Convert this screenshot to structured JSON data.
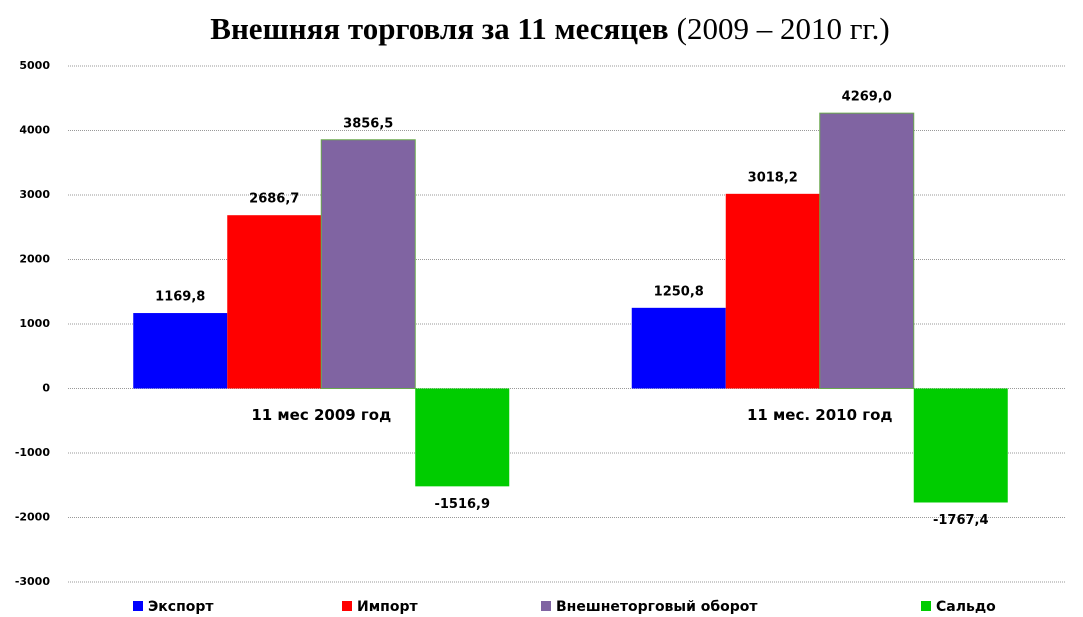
{
  "chart_data": {
    "type": "bar",
    "title": "Внешняя торговля за 11 месяцев",
    "subtitle": "(2009 – 2010 гг.)",
    "categories": [
      "11 мес 2009 год",
      "11 мес. 2010 год"
    ],
    "series": [
      {
        "name": "Экспорт",
        "color": "#0000ff",
        "values": [
          1169.8,
          1250.8
        ],
        "value_labels": [
          "1169,8",
          "1250,8"
        ]
      },
      {
        "name": "Импорт",
        "color": "#ff0000",
        "values": [
          2686.7,
          3018.2
        ],
        "value_labels": [
          "2686,7",
          "3018,2"
        ]
      },
      {
        "name": "Внешнеторговый оборот",
        "color": "#8064a2",
        "values": [
          3856.5,
          4269.0
        ],
        "value_labels": [
          "3856,5",
          "4269,0"
        ]
      },
      {
        "name": "Сальдо",
        "color": "#00cc00",
        "values": [
          -1516.9,
          -1767.4
        ],
        "value_labels": [
          "-1516,9",
          "-1767,4"
        ]
      }
    ],
    "ylim": [
      -3000,
      5000
    ],
    "yticks": [
      -3000,
      -2000,
      -1000,
      0,
      1000,
      2000,
      3000,
      4000,
      5000
    ],
    "grid": true,
    "legend": "bottom"
  }
}
